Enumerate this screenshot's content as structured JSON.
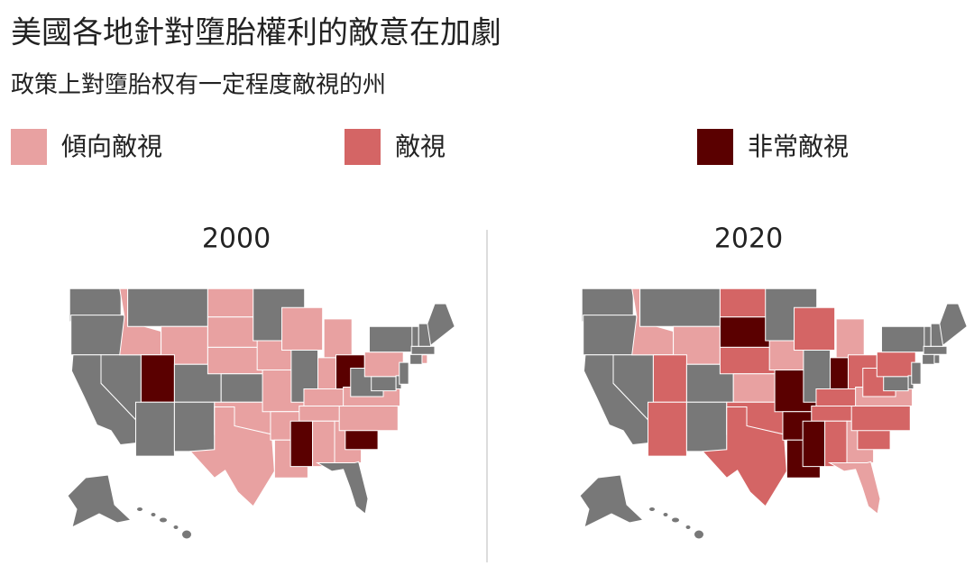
{
  "header": {
    "title": "美國各地針對墮胎權利的敵意在加劇",
    "subtitle": "政策上對墮胎权有一定程度敵視的州"
  },
  "legend": [
    {
      "label": "傾向敵視",
      "color": "#e8a1a1"
    },
    {
      "label": "敵視",
      "color": "#d46565"
    },
    {
      "label": "非常敵視",
      "color": "#5a0000"
    }
  ],
  "base_color": "#787878",
  "maps": [
    {
      "year": "2000",
      "levels": [
        0,
        0,
        0,
        0,
        1,
        0,
        1,
        3,
        0,
        0,
        0,
        1,
        1,
        1,
        0,
        1,
        1,
        0,
        1,
        1,
        1,
        1,
        1,
        0,
        1,
        1,
        3,
        1,
        1,
        3,
        1,
        1,
        0,
        3,
        1,
        1,
        0,
        1,
        0,
        0,
        0,
        0,
        0,
        1,
        0,
        0,
        0,
        0,
        0,
        0
      ]
    },
    {
      "year": "2020",
      "levels": [
        0,
        0,
        0,
        0,
        1,
        0,
        1,
        2,
        0,
        2,
        0,
        2,
        3,
        2,
        1,
        2,
        2,
        0,
        1,
        3,
        3,
        3,
        2,
        0,
        1,
        3,
        2,
        2,
        2,
        3,
        2,
        1,
        1,
        2,
        2,
        1,
        2,
        2,
        0,
        0,
        0,
        0,
        0,
        0,
        0,
        0,
        0,
        0,
        0,
        0
      ]
    }
  ]
}
